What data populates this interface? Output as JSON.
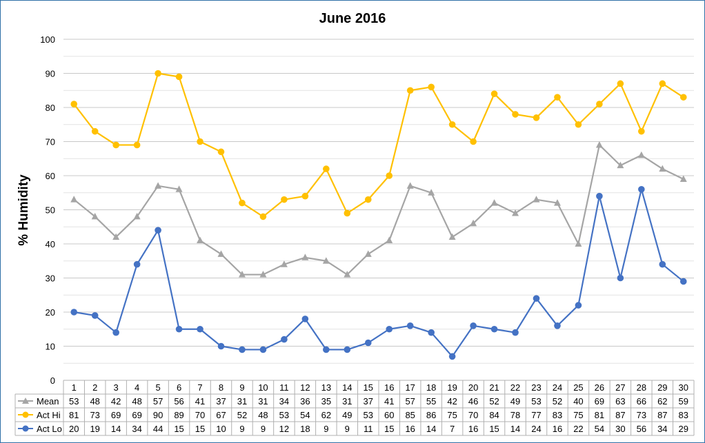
{
  "chart_data": {
    "type": "line",
    "title": "June 2016",
    "ylabel": "% Humidity",
    "xlabel": "",
    "ylim": [
      0,
      100
    ],
    "y_major_ticks": [
      0,
      10,
      20,
      30,
      40,
      50,
      60,
      70,
      80,
      90,
      100
    ],
    "minor_gridlines": true,
    "categories": [
      "1",
      "2",
      "3",
      "4",
      "5",
      "6",
      "7",
      "8",
      "9",
      "10",
      "11",
      "12",
      "13",
      "14",
      "15",
      "16",
      "17",
      "18",
      "19",
      "20",
      "21",
      "22",
      "23",
      "24",
      "25",
      "26",
      "27",
      "28",
      "29",
      "30"
    ],
    "series": [
      {
        "name": "Mean",
        "color": "#a5a5a5",
        "marker": "triangle",
        "values": [
          53,
          48,
          42,
          48,
          57,
          56,
          41,
          37,
          31,
          31,
          34,
          36,
          35,
          31,
          37,
          41,
          57,
          55,
          42,
          46,
          52,
          49,
          53,
          52,
          40,
          69,
          63,
          66,
          62,
          59
        ]
      },
      {
        "name": "Act Hi",
        "color": "#ffc000",
        "marker": "circle",
        "values": [
          81,
          73,
          69,
          69,
          90,
          89,
          70,
          67,
          52,
          48,
          53,
          54,
          62,
          49,
          53,
          60,
          85,
          86,
          75,
          70,
          84,
          78,
          77,
          83,
          75,
          81,
          87,
          73,
          87,
          83
        ]
      },
      {
        "name": "Act Lo",
        "color": "#4472c4",
        "marker": "circle",
        "values": [
          20,
          19,
          14,
          34,
          44,
          15,
          15,
          10,
          9,
          9,
          12,
          18,
          9,
          9,
          11,
          15,
          16,
          14,
          7,
          16,
          15,
          14,
          24,
          16,
          22,
          54,
          30,
          56,
          34,
          29
        ]
      }
    ],
    "data_table": true
  }
}
